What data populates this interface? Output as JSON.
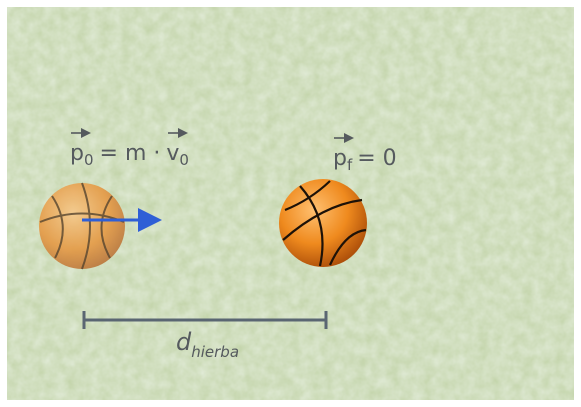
{
  "labels": {
    "initial_momentum": {
      "p": "p",
      "p_sub": "0",
      "equals": "= m ·",
      "v": "v",
      "v_sub": "0"
    },
    "final_momentum": {
      "p": "p",
      "p_sub": "f",
      "equals": "= 0"
    },
    "distance": {
      "d": "d",
      "d_sub": "hierba"
    }
  }
}
